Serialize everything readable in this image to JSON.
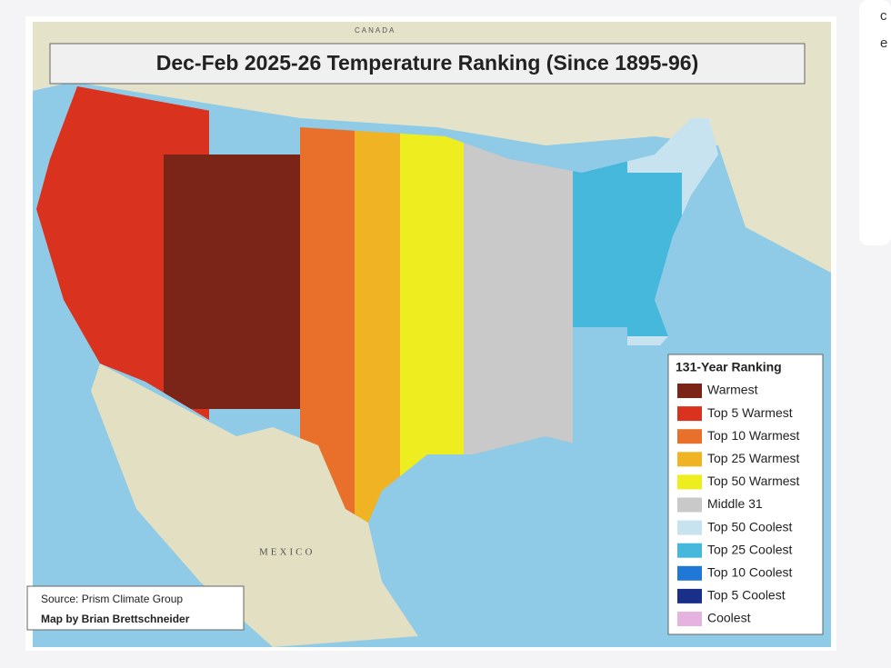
{
  "header": {
    "title": "Dec-Feb 2025-26 Temperature Ranking (Since 1895-96)"
  },
  "map_labels": [
    "CANADA",
    "MEXICO"
  ],
  "legend": {
    "title": "131-Year Ranking",
    "items": [
      {
        "label": "Warmest",
        "color": "#7a2518"
      },
      {
        "label": "Top 5 Warmest",
        "color": "#d9321f"
      },
      {
        "label": "Top 10 Warmest",
        "color": "#e8702a"
      },
      {
        "label": "Top 25 Warmest",
        "color": "#f0b323"
      },
      {
        "label": "Top 50 Warmest",
        "color": "#eded1f"
      },
      {
        "label": "Middle 31",
        "color": "#c9c9c9"
      },
      {
        "label": "Top 50 Coolest",
        "color": "#c8e3f0"
      },
      {
        "label": "Top 25 Coolest",
        "color": "#45b8dc"
      },
      {
        "label": "Top 10 Coolest",
        "color": "#1f78d6"
      },
      {
        "label": "Top 5 Coolest",
        "color": "#1a2f8a"
      },
      {
        "label": "Coolest",
        "color": "#e6b3e0"
      }
    ]
  },
  "source": [
    "Source: Prism Climate Group",
    "Map by Brian Brettschneider"
  ],
  "sidebar": [
    "c",
    "e"
  ]
}
